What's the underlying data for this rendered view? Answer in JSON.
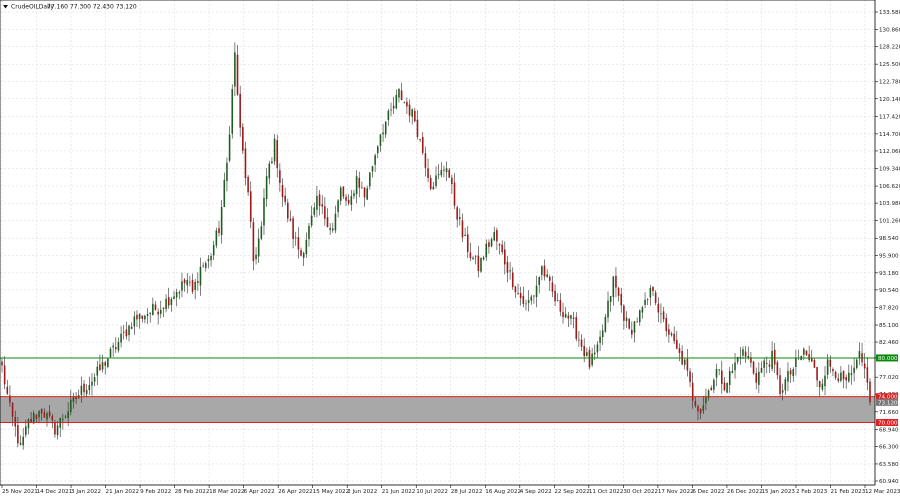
{
  "header": {
    "menu_icon": "triangle-down-icon",
    "symbol": "CrudeOILDaily",
    "ohlc": "77.160 77.300 72.430 73.120"
  },
  "colors": {
    "background": "#ffffff",
    "grid": "#d6d6d6",
    "frame": "#000000",
    "bull_candle": "#1f5c1f",
    "bear_candle": "#a01818",
    "green_level": "#0a8a0a",
    "red_level": "#e02020",
    "zone_fill": "#a8a8a8"
  },
  "chart_data": {
    "type": "candlestick",
    "title": "CrudeOILDaily",
    "ylim": [
      60.94,
      133.58
    ],
    "y_ticks": [
      "133.580",
      "130.860",
      "128.220",
      "125.500",
      "122.780",
      "120.140",
      "117.420",
      "114.700",
      "112.060",
      "109.340",
      "106.620",
      "103.980",
      "101.260",
      "98.540",
      "95.900",
      "93.180",
      "90.540",
      "87.820",
      "85.100",
      "82.460",
      "80.000",
      "77.020",
      "74.380",
      "71.660",
      "68.940",
      "66.300",
      "63.580",
      "60.940"
    ],
    "x_ticks": [
      "25 Nov 2021",
      "14 Dec 2021",
      "3 Jan 2022",
      "21 Jan 2022",
      "9 Feb 2022",
      "28 Feb 2022",
      "18 Mar 2022",
      "6 Apr 2022",
      "26 Apr 2022",
      "15 May 2022",
      "2 Jun 2022",
      "21 Jun 2022",
      "10 Jul 2022",
      "28 Jul 2022",
      "16 Aug 2022",
      "4 Sep 2022",
      "22 Sep 2022",
      "11 Oct 2022",
      "30 Oct 2022",
      "17 Nov 2022",
      "6 Dec 2022",
      "26 Dec 2022",
      "15 Jan 2023",
      "2 Feb 2023",
      "21 Feb 2023",
      "12 Mar 2023"
    ],
    "close_path": [
      [
        0,
        78.5
      ],
      [
        3,
        72
      ],
      [
        7,
        66
      ],
      [
        10,
        70
      ],
      [
        15,
        72
      ],
      [
        20,
        69
      ],
      [
        25,
        72
      ],
      [
        30,
        75
      ],
      [
        35,
        77
      ],
      [
        40,
        80
      ],
      [
        45,
        83
      ],
      [
        50,
        86
      ],
      [
        55,
        87
      ],
      [
        60,
        88
      ],
      [
        65,
        90
      ],
      [
        70,
        92
      ],
      [
        72,
        90
      ],
      [
        75,
        94
      ],
      [
        78,
        95
      ],
      [
        82,
        100
      ],
      [
        85,
        110
      ],
      [
        88,
        127
      ],
      [
        90,
        115
      ],
      [
        93,
        105
      ],
      [
        95,
        95
      ],
      [
        98,
        100
      ],
      [
        100,
        108
      ],
      [
        103,
        113
      ],
      [
        106,
        105
      ],
      [
        110,
        99
      ],
      [
        113,
        96
      ],
      [
        116,
        100
      ],
      [
        119,
        104
      ],
      [
        122,
        102
      ],
      [
        125,
        100
      ],
      [
        128,
        106
      ],
      [
        131,
        103
      ],
      [
        134,
        108
      ],
      [
        137,
        105
      ],
      [
        140,
        110
      ],
      [
        143,
        115
      ],
      [
        147,
        118
      ],
      [
        150,
        121
      ],
      [
        153,
        119
      ],
      [
        156,
        117
      ],
      [
        159,
        112
      ],
      [
        162,
        107
      ],
      [
        165,
        108
      ],
      [
        168,
        110
      ],
      [
        171,
        104
      ],
      [
        174,
        99
      ],
      [
        177,
        96
      ],
      [
        180,
        94
      ],
      [
        183,
        97
      ],
      [
        186,
        99
      ],
      [
        189,
        96
      ],
      [
        192,
        93
      ],
      [
        195,
        90
      ],
      [
        198,
        88
      ],
      [
        201,
        90
      ],
      [
        204,
        94
      ],
      [
        207,
        91
      ],
      [
        210,
        88
      ],
      [
        213,
        87
      ],
      [
        216,
        85
      ],
      [
        219,
        82
      ],
      [
        222,
        79
      ],
      [
        225,
        81
      ],
      [
        228,
        86
      ],
      [
        231,
        92
      ],
      [
        234,
        88
      ],
      [
        237,
        84
      ],
      [
        240,
        86
      ],
      [
        243,
        88
      ],
      [
        246,
        91
      ],
      [
        249,
        86
      ],
      [
        252,
        84
      ],
      [
        255,
        81
      ],
      [
        258,
        79
      ],
      [
        261,
        74
      ],
      [
        264,
        72
      ],
      [
        267,
        75
      ],
      [
        270,
        78
      ],
      [
        273,
        76
      ],
      [
        276,
        78
      ],
      [
        279,
        81
      ],
      [
        282,
        80
      ],
      [
        285,
        77
      ],
      [
        288,
        79
      ],
      [
        291,
        80
      ],
      [
        294,
        75
      ],
      [
        297,
        77
      ],
      [
        300,
        79
      ],
      [
        303,
        81
      ],
      [
        306,
        79
      ],
      [
        309,
        76
      ],
      [
        312,
        79
      ],
      [
        315,
        78
      ],
      [
        318,
        76
      ],
      [
        321,
        77
      ],
      [
        324,
        80
      ],
      [
        327,
        77
      ],
      [
        330,
        74
      ]
    ],
    "close_points_count": 329,
    "series": [
      {
        "name": "80.000",
        "value": 80.0,
        "kind": "horizontal-line",
        "color": "#0a8a0a"
      },
      {
        "name": "74.000",
        "value": 74.0,
        "kind": "horizontal-line",
        "color": "#e02020"
      },
      {
        "name": "70.000",
        "value": 70.0,
        "kind": "horizontal-line",
        "color": "#e02020"
      }
    ],
    "price_labels": {
      "green_level": "80.000",
      "upper_red": "74.000",
      "current": "73.120",
      "lower_red": "70.000"
    },
    "zone": {
      "from": 70.0,
      "to": 74.0
    },
    "grid": true
  }
}
